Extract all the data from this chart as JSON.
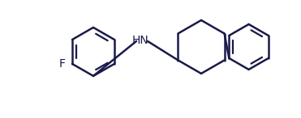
{
  "bg_color": "#ffffff",
  "line_color": "#1a1a4a",
  "line_width": 1.8,
  "font_size": 10,
  "F_label": "F",
  "NH_label": "HN",
  "figsize": [
    3.71,
    1.46
  ],
  "dpi": 100
}
